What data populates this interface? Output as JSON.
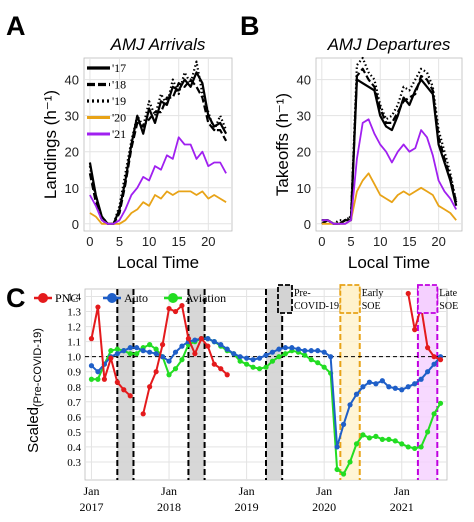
{
  "panels": {
    "a": {
      "letter": "A"
    },
    "b": {
      "letter": "B"
    },
    "c": {
      "letter": "C"
    }
  },
  "chart_data": [
    {
      "id": "A",
      "type": "line",
      "title": "AMJ Arrivals",
      "xlabel": "Local Time",
      "ylabel": "Landings (h⁻¹)",
      "xlim": [
        -1,
        24
      ],
      "ylim": [
        -2,
        46
      ],
      "xticks": [
        0,
        5,
        10,
        15,
        20
      ],
      "yticks": [
        0,
        10,
        20,
        30,
        40
      ],
      "grid": true,
      "legend_position": "top-left",
      "x": [
        0,
        1,
        2,
        3,
        4,
        5,
        6,
        7,
        8,
        9,
        10,
        11,
        12,
        13,
        14,
        15,
        16,
        17,
        18,
        19,
        20,
        21,
        22,
        23
      ],
      "series": [
        {
          "name": "'17",
          "color": "#000000",
          "dash": "solid",
          "values": [
            17,
            8,
            2,
            0,
            0,
            4,
            12,
            22,
            30,
            25,
            32,
            28,
            34,
            33,
            38,
            37,
            40,
            38,
            42,
            39,
            30,
            27,
            28,
            25
          ]
        },
        {
          "name": "'18",
          "color": "#000000",
          "dash": "longdash",
          "values": [
            14,
            6,
            1,
            0,
            0,
            3,
            11,
            21,
            28,
            27,
            29,
            31,
            31,
            35,
            35,
            39,
            38,
            40,
            38,
            35,
            28,
            26,
            26,
            23
          ]
        },
        {
          "name": "'19",
          "color": "#000000",
          "dash": "dotted",
          "values": [
            16,
            7,
            2,
            0,
            0,
            5,
            14,
            23,
            30,
            27,
            34,
            30,
            36,
            33,
            40,
            36,
            42,
            39,
            45,
            36,
            31,
            26,
            30,
            26
          ]
        },
        {
          "name": "'20",
          "color": "#E8A317",
          "dash": "solid",
          "values": [
            3,
            2,
            0,
            0,
            0,
            0,
            1,
            3,
            4,
            6,
            5,
            8,
            7,
            9,
            8,
            9,
            9,
            9,
            8,
            9,
            7,
            8,
            7,
            6
          ]
        },
        {
          "name": "'21",
          "color": "#A020F0",
          "dash": "solid",
          "values": [
            8,
            5,
            1,
            0,
            0,
            1,
            4,
            8,
            10,
            13,
            12,
            16,
            15,
            19,
            18,
            24,
            22,
            22,
            18,
            20,
            16,
            17,
            17,
            14
          ]
        }
      ]
    },
    {
      "id": "B",
      "type": "line",
      "title": "AMJ Departures",
      "xlabel": "Local Time",
      "ylabel": "Takeoffs (h⁻¹)",
      "xlim": [
        -1,
        24
      ],
      "ylim": [
        -2,
        46
      ],
      "xticks": [
        0,
        5,
        10,
        15,
        20
      ],
      "yticks": [
        0,
        10,
        20,
        30,
        40
      ],
      "grid": true,
      "x": [
        0,
        1,
        2,
        3,
        4,
        5,
        6,
        7,
        8,
        9,
        10,
        11,
        12,
        13,
        14,
        15,
        16,
        17,
        18,
        19,
        20,
        21,
        22,
        23
      ],
      "series": [
        {
          "name": "'17",
          "color": "#000000",
          "dash": "solid",
          "values": [
            0,
            1,
            0,
            0,
            1,
            1,
            40,
            39,
            38,
            37,
            30,
            27,
            26,
            30,
            35,
            33,
            37,
            40,
            38,
            36,
            22,
            17,
            12,
            5
          ]
        },
        {
          "name": "'18",
          "color": "#000000",
          "dash": "longdash",
          "values": [
            1,
            1,
            0,
            0,
            1,
            2,
            41,
            43,
            40,
            38,
            32,
            28,
            28,
            31,
            34,
            35,
            36,
            41,
            40,
            37,
            24,
            18,
            13,
            6
          ]
        },
        {
          "name": "'19",
          "color": "#000000",
          "dash": "dotted",
          "values": [
            1,
            1,
            0,
            1,
            1,
            2,
            44,
            46,
            42,
            40,
            33,
            29,
            30,
            33,
            38,
            37,
            40,
            43,
            42,
            38,
            26,
            20,
            14,
            6
          ]
        },
        {
          "name": "'20",
          "color": "#E8A317",
          "dash": "solid",
          "values": [
            0,
            0,
            0,
            0,
            0,
            1,
            9,
            12,
            14,
            11,
            8,
            7,
            6,
            8,
            9,
            8,
            9,
            10,
            9,
            8,
            5,
            4,
            3,
            1
          ]
        },
        {
          "name": "'21",
          "color": "#A020F0",
          "dash": "solid",
          "values": [
            1,
            1,
            0,
            0,
            0,
            1,
            18,
            28,
            29,
            25,
            22,
            20,
            17,
            20,
            22,
            20,
            21,
            26,
            24,
            19,
            12,
            9,
            7,
            4
          ]
        }
      ]
    },
    {
      "id": "C",
      "type": "line",
      "ylabel": "Scaled",
      "ylabel_sub": "(Pre-COVID-19)",
      "xlim": [
        0,
        56
      ],
      "ylim": [
        0.18,
        1.45
      ],
      "yticks": [
        0.3,
        0.4,
        0.5,
        0.6,
        0.7,
        0.8,
        0.9,
        1.0,
        1.1,
        1.2,
        1.3,
        1.4
      ],
      "ytick_labels": [
        "0.3",
        "0.4",
        "0.5",
        "0.6",
        "0.7",
        "0.8",
        "0.9",
        "1.0",
        "1.1",
        "1.2",
        "1.3",
        "1.4"
      ],
      "xticks": [
        1,
        13,
        25,
        37,
        49
      ],
      "xtick_labels": [
        [
          "Jan",
          "2017"
        ],
        [
          "Jan",
          "2018"
        ],
        [
          "Jan",
          "2019"
        ],
        [
          "Jan",
          "2020"
        ],
        [
          "Jan",
          "2021"
        ]
      ],
      "reference_line": 1.0,
      "grid": true,
      "legend_position": "top",
      "shaded_periods": [
        {
          "start": 5,
          "end": 7.5,
          "label": "",
          "fill": "#D3D3D3",
          "stroke": "#000000"
        },
        {
          "start": 16,
          "end": 18.5,
          "label": "",
          "fill": "#D3D3D3",
          "stroke": "#000000"
        },
        {
          "start": 28,
          "end": 30.5,
          "label": "",
          "fill": "#D3D3D3",
          "stroke": "#000000"
        }
      ],
      "annotations": [
        {
          "label": [
            "Pre-",
            "COVID-19"
          ],
          "fill": "#D3D3D3",
          "stroke": "#000000"
        },
        {
          "label": [
            "Early",
            "SOE"
          ],
          "start": 39.5,
          "end": 42.5,
          "fill": "#FFF2CC",
          "stroke": "#E8A317"
        },
        {
          "label": [
            "Late",
            "SOE"
          ],
          "start": 51.5,
          "end": 54.5,
          "fill": "#F5D0FF",
          "stroke": "#C000E0"
        }
      ],
      "series": [
        {
          "name": "PNC",
          "color": "#E41A1C",
          "x": [
            1,
            2,
            3,
            4,
            5,
            6,
            7,
            9,
            10,
            11,
            12,
            13,
            14,
            15,
            16,
            17,
            18,
            19,
            20,
            21,
            22,
            50,
            51,
            52,
            53,
            54,
            55
          ],
          "values": [
            1.12,
            1.33,
            0.85,
            0.99,
            0.83,
            0.78,
            0.74,
            0.62,
            0.8,
            0.9,
            1.08,
            1.32,
            1.3,
            1.34,
            1.12,
            1.02,
            1.12,
            1.07,
            0.95,
            0.92,
            0.88,
            1.42,
            1.18,
            1.33,
            1.06,
            1.0,
            0.98
          ]
        },
        {
          "name": "Auto",
          "color": "#1F5FC8",
          "x": [
            1,
            2,
            3,
            4,
            5,
            6,
            7,
            8,
            9,
            10,
            11,
            12,
            13,
            14,
            15,
            16,
            17,
            18,
            19,
            20,
            21,
            22,
            23,
            24,
            25,
            26,
            27,
            28,
            29,
            30,
            31,
            32,
            33,
            34,
            35,
            36,
            37,
            38,
            39,
            40,
            41,
            42,
            43,
            44,
            45,
            46,
            47,
            48,
            49,
            50,
            51,
            52,
            53,
            54,
            55
          ],
          "values": [
            0.94,
            0.9,
            0.95,
            1.0,
            1.02,
            1.04,
            1.06,
            1.06,
            1.04,
            1.03,
            1.02,
            1.0,
            0.97,
            1.03,
            1.07,
            1.1,
            1.11,
            1.12,
            1.12,
            1.1,
            1.08,
            1.05,
            1.02,
            1.0,
            0.99,
            0.98,
            0.99,
            1.01,
            1.03,
            1.05,
            1.06,
            1.06,
            1.05,
            1.04,
            1.04,
            1.04,
            1.03,
            1.0,
            0.4,
            0.55,
            0.68,
            0.75,
            0.8,
            0.83,
            0.82,
            0.84,
            0.8,
            0.79,
            0.78,
            0.8,
            0.82,
            0.85,
            0.9,
            0.95,
            1.0
          ]
        },
        {
          "name": "Aviation",
          "color": "#22DD22",
          "x": [
            1,
            2,
            3,
            4,
            5,
            6,
            7,
            8,
            9,
            10,
            11,
            12,
            13,
            14,
            15,
            16,
            17,
            18,
            19,
            20,
            21,
            22,
            23,
            24,
            25,
            26,
            27,
            28,
            29,
            30,
            31,
            32,
            33,
            34,
            35,
            36,
            37,
            38,
            39,
            40,
            41,
            42,
            43,
            44,
            45,
            46,
            47,
            48,
            49,
            50,
            51,
            52,
            53,
            54,
            55
          ],
          "values": [
            0.85,
            0.85,
            0.95,
            1.04,
            1.05,
            1.04,
            1.02,
            1.02,
            1.06,
            1.08,
            1.05,
            1.0,
            0.88,
            0.92,
            0.98,
            1.08,
            1.1,
            1.12,
            1.12,
            1.1,
            1.07,
            1.04,
            1.02,
            0.97,
            0.95,
            0.93,
            0.92,
            0.93,
            0.97,
            1.0,
            1.02,
            1.04,
            1.03,
            1.01,
            0.98,
            0.96,
            0.93,
            0.89,
            0.25,
            0.22,
            0.3,
            0.42,
            0.48,
            0.46,
            0.47,
            0.45,
            0.45,
            0.44,
            0.42,
            0.4,
            0.39,
            0.4,
            0.5,
            0.62,
            0.69
          ]
        }
      ]
    }
  ]
}
